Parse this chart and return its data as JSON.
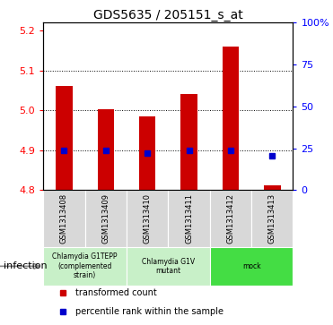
{
  "title": "GDS5635 / 205151_s_at",
  "samples": [
    "GSM1313408",
    "GSM1313409",
    "GSM1313410",
    "GSM1313411",
    "GSM1313412",
    "GSM1313413"
  ],
  "red_values": [
    5.062,
    5.002,
    4.984,
    5.04,
    5.16,
    4.812
  ],
  "blue_values": [
    4.9,
    4.9,
    4.893,
    4.9,
    4.9,
    4.886
  ],
  "ymin": 4.8,
  "ymax": 5.22,
  "yticks_left": [
    4.8,
    4.9,
    5.0,
    5.1,
    5.2
  ],
  "yticks_right": [
    0,
    25,
    50,
    75,
    100
  ],
  "bar_color": "#cc0000",
  "dot_color": "#0000cc",
  "bar_width": 0.4,
  "sample_bg": "#d8d8d8",
  "group1_color": "#c8f0c8",
  "group2_color": "#44dd44",
  "legend_red": "transformed count",
  "legend_blue": "percentile rank within the sample",
  "factor_label": "infection"
}
